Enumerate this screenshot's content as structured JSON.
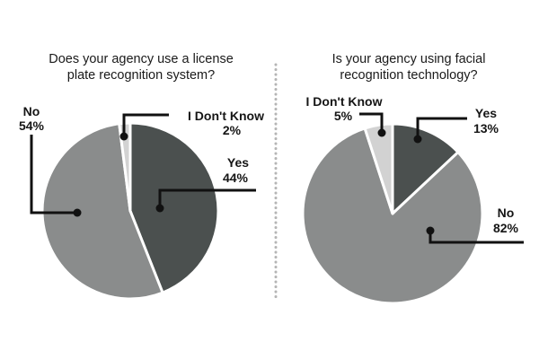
{
  "chart_data": [
    {
      "type": "pie",
      "title": "Does your agency use a license plate recognition system?",
      "title_lines": [
        "Does your agency use a license",
        "plate recognition system?"
      ],
      "slices": [
        {
          "label": "Yes",
          "value": 44,
          "display": "44%",
          "color": "#4b504f"
        },
        {
          "label": "No",
          "value": 54,
          "display": "54%",
          "color": "#8a8c8c"
        },
        {
          "label": "I Don't Know",
          "value": 2,
          "display": "2%",
          "color": "#d2d2d2"
        }
      ]
    },
    {
      "type": "pie",
      "title": "Is your agency using facial recognition technology?",
      "title_lines": [
        "Is your agency using facial",
        "recognition technology?"
      ],
      "slices": [
        {
          "label": "Yes",
          "value": 13,
          "display": "13%",
          "color": "#4b504f"
        },
        {
          "label": "No",
          "value": 82,
          "display": "82%",
          "color": "#8a8c8c"
        },
        {
          "label": "I Don't Know",
          "value": 5,
          "display": "5%",
          "color": "#d2d2d2"
        }
      ]
    }
  ]
}
